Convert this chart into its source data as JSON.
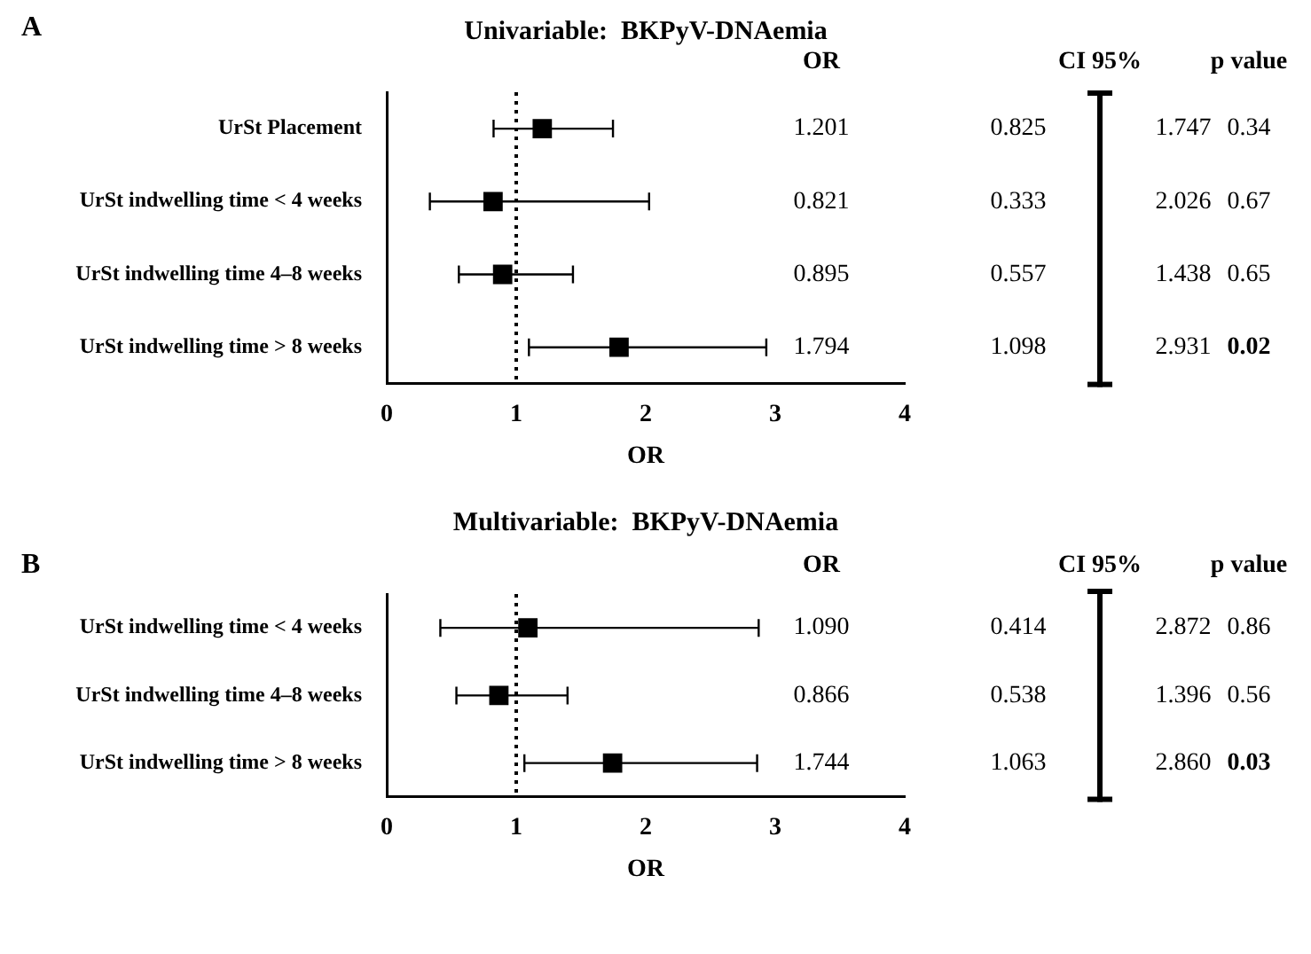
{
  "chart_data": [
    {
      "type": "scatter",
      "orientation": "horizontal",
      "title": "Univariable:  BKPyV-DNAemia",
      "xlabel": "OR",
      "categories": [
        "UrSt Placement",
        "UrSt indwelling time < 4 weeks",
        "UrSt indwelling time 4–8 weeks",
        "UrSt indwelling time > 8 weeks"
      ],
      "values": [
        1.201,
        0.821,
        0.895,
        1.794
      ],
      "errors": [
        [
          0.825,
          1.747
        ],
        [
          0.333,
          2.026
        ],
        [
          0.557,
          1.438
        ],
        [
          1.098,
          2.931
        ]
      ],
      "color": "#000000",
      "marker": "square",
      "xlim": [
        0,
        4
      ],
      "xticks": [
        0,
        1,
        2,
        3,
        4
      ],
      "grid": false,
      "ref_lines": [
        {
          "axis": "x",
          "value": 1,
          "color": "#000000",
          "line_style": "dotted"
        }
      ],
      "annotations": [
        "A",
        "OR",
        "CI 95%",
        "p value",
        "1.201",
        "0.825",
        "1.747",
        "0.34",
        "0.821",
        "0.333",
        "2.026",
        "0.67",
        "0.895",
        "0.557",
        "1.438",
        "0.65",
        "1.794",
        "1.098",
        "2.931",
        "0.02"
      ]
    },
    {
      "type": "scatter",
      "orientation": "horizontal",
      "title": "Multivariable:  BKPyV-DNAemia",
      "xlabel": "OR",
      "categories": [
        "UrSt indwelling time < 4 weeks",
        "UrSt indwelling time 4–8 weeks",
        "UrSt indwelling time > 8 weeks"
      ],
      "values": [
        1.09,
        0.866,
        1.744
      ],
      "errors": [
        [
          0.414,
          2.872
        ],
        [
          0.538,
          1.396
        ],
        [
          1.063,
          2.86
        ]
      ],
      "color": "#000000",
      "marker": "square",
      "xlim": [
        0,
        4
      ],
      "xticks": [
        0,
        1,
        2,
        3,
        4
      ],
      "grid": false,
      "ref_lines": [
        {
          "axis": "x",
          "value": 1,
          "color": "#000000",
          "line_style": "dotted"
        }
      ],
      "annotations": [
        "B",
        "OR",
        "CI 95%",
        "p value",
        "1.090",
        "0.414",
        "2.872",
        "0.86",
        "0.866",
        "0.538",
        "1.396",
        "0.56",
        "1.744",
        "1.063",
        "2.860",
        "0.03"
      ]
    }
  ]
}
